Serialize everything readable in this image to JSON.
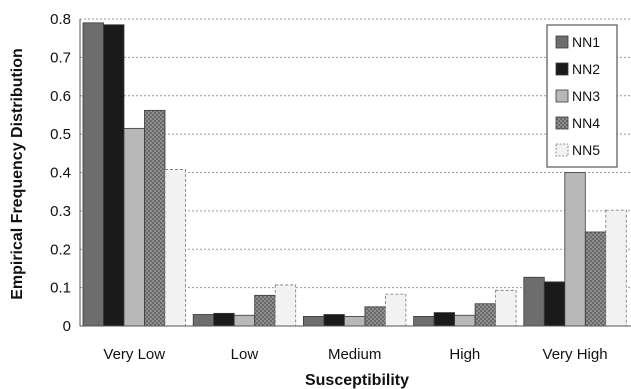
{
  "chart_data": {
    "type": "bar",
    "title": "",
    "xlabel": "Susceptibility",
    "ylabel": "Empirical Frequency Distribution",
    "categories": [
      "Very Low",
      "Low",
      "Medium",
      "High",
      "Very High"
    ],
    "ylim": [
      0,
      0.8
    ],
    "yticks": [
      "0",
      "0.1",
      "0.2",
      "0.3",
      "0.4",
      "0.5",
      "0.6",
      "0.7",
      "0.8"
    ],
    "grid": "horizontal-dotted",
    "legend_position": "top-right",
    "series": [
      {
        "name": "NN1",
        "color": "#6d6d6d",
        "pattern": "solid",
        "values": [
          0.79,
          0.03,
          0.025,
          0.025,
          0.127
        ]
      },
      {
        "name": "NN2",
        "color": "#1a1a1a",
        "pattern": "solid",
        "values": [
          0.785,
          0.033,
          0.03,
          0.035,
          0.115
        ]
      },
      {
        "name": "NN3",
        "color": "#b8b8b8",
        "pattern": "solid",
        "values": [
          0.515,
          0.028,
          0.025,
          0.028,
          0.4
        ]
      },
      {
        "name": "NN4",
        "color": "#7a7a7a",
        "pattern": "dotted",
        "values": [
          0.562,
          0.08,
          0.05,
          0.058,
          0.245
        ]
      },
      {
        "name": "NN5",
        "color": "#f2f2f2",
        "pattern": "dashed",
        "values": [
          0.408,
          0.107,
          0.083,
          0.093,
          0.302
        ]
      }
    ]
  }
}
